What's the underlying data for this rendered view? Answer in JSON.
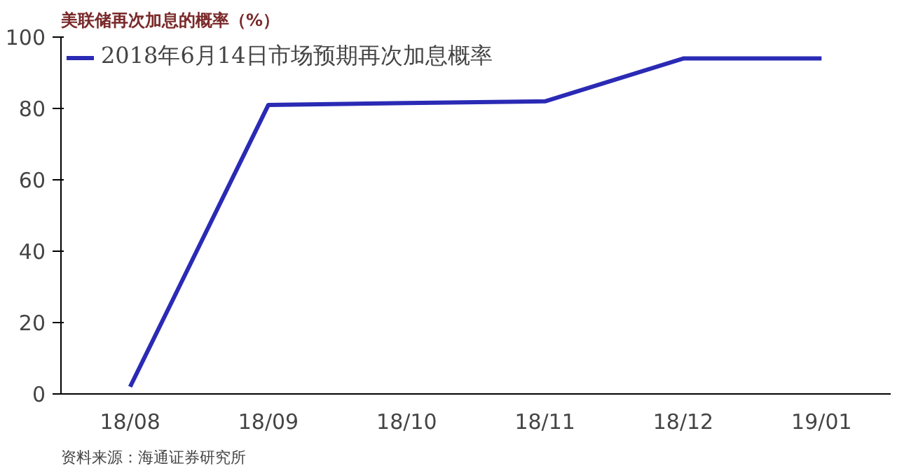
{
  "chart_data": {
    "type": "line",
    "title": "美联储再次加息的概率（%）",
    "categories": [
      "18/08",
      "18/09",
      "18/10",
      "18/11",
      "18/12",
      "19/01"
    ],
    "series": [
      {
        "name": "2018年6月14日市场预期再次加息概率",
        "color": "#2a2ab5",
        "values": [
          2,
          81,
          81.5,
          82,
          94,
          94
        ]
      }
    ],
    "ylim": [
      0,
      100
    ],
    "yticks": [
      0,
      20,
      40,
      60,
      80,
      100
    ],
    "grid": false,
    "legend": "top left",
    "annotations": [
      "资料来源：海通证券研究所"
    ]
  }
}
